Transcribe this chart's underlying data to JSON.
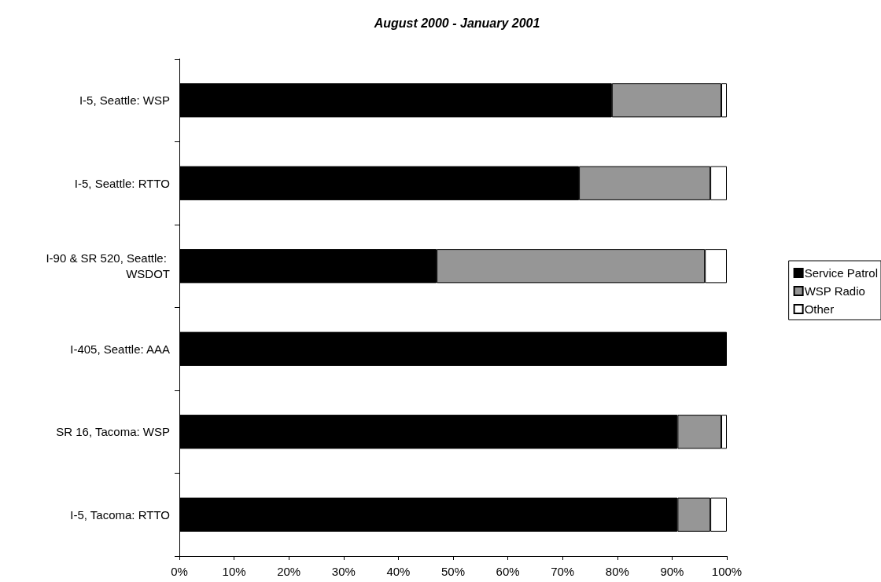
{
  "chart_data": {
    "type": "bar",
    "title": "August 2000 - January 2001",
    "orientation": "horizontal",
    "stacked": true,
    "categories": [
      "I-5, Seattle: WSP",
      "I-5, Seattle: RTTO",
      "I-90 & SR 520, Seattle: WSDOT",
      "I-405, Seattle: AAA",
      "SR 16, Tacoma: WSP",
      "I-5, Tacoma: RTTO"
    ],
    "series": [
      {
        "name": "Service Patrol",
        "color": "#000000",
        "values": [
          79,
          73,
          47,
          100,
          91,
          91
        ]
      },
      {
        "name": "WSP Radio",
        "color": "#969696",
        "values": [
          20,
          24,
          49,
          0,
          8,
          6
        ]
      },
      {
        "name": "Other",
        "color": "#ffffff",
        "values": [
          1,
          3,
          4,
          0,
          1,
          3
        ]
      }
    ],
    "xlim": [
      0,
      100
    ],
    "xticks": [
      {
        "value": 0,
        "label": "0%"
      },
      {
        "value": 10,
        "label": "10%"
      },
      {
        "value": 20,
        "label": "20%"
      },
      {
        "value": 30,
        "label": "30%"
      },
      {
        "value": 40,
        "label": "40%"
      },
      {
        "value": 50,
        "label": "50%"
      },
      {
        "value": 60,
        "label": "60%"
      },
      {
        "value": 70,
        "label": "70%"
      },
      {
        "value": 80,
        "label": "80%"
      },
      {
        "value": 90,
        "label": "90%"
      },
      {
        "value": 100,
        "label": "100%"
      }
    ],
    "grid": false,
    "legend": "right"
  }
}
